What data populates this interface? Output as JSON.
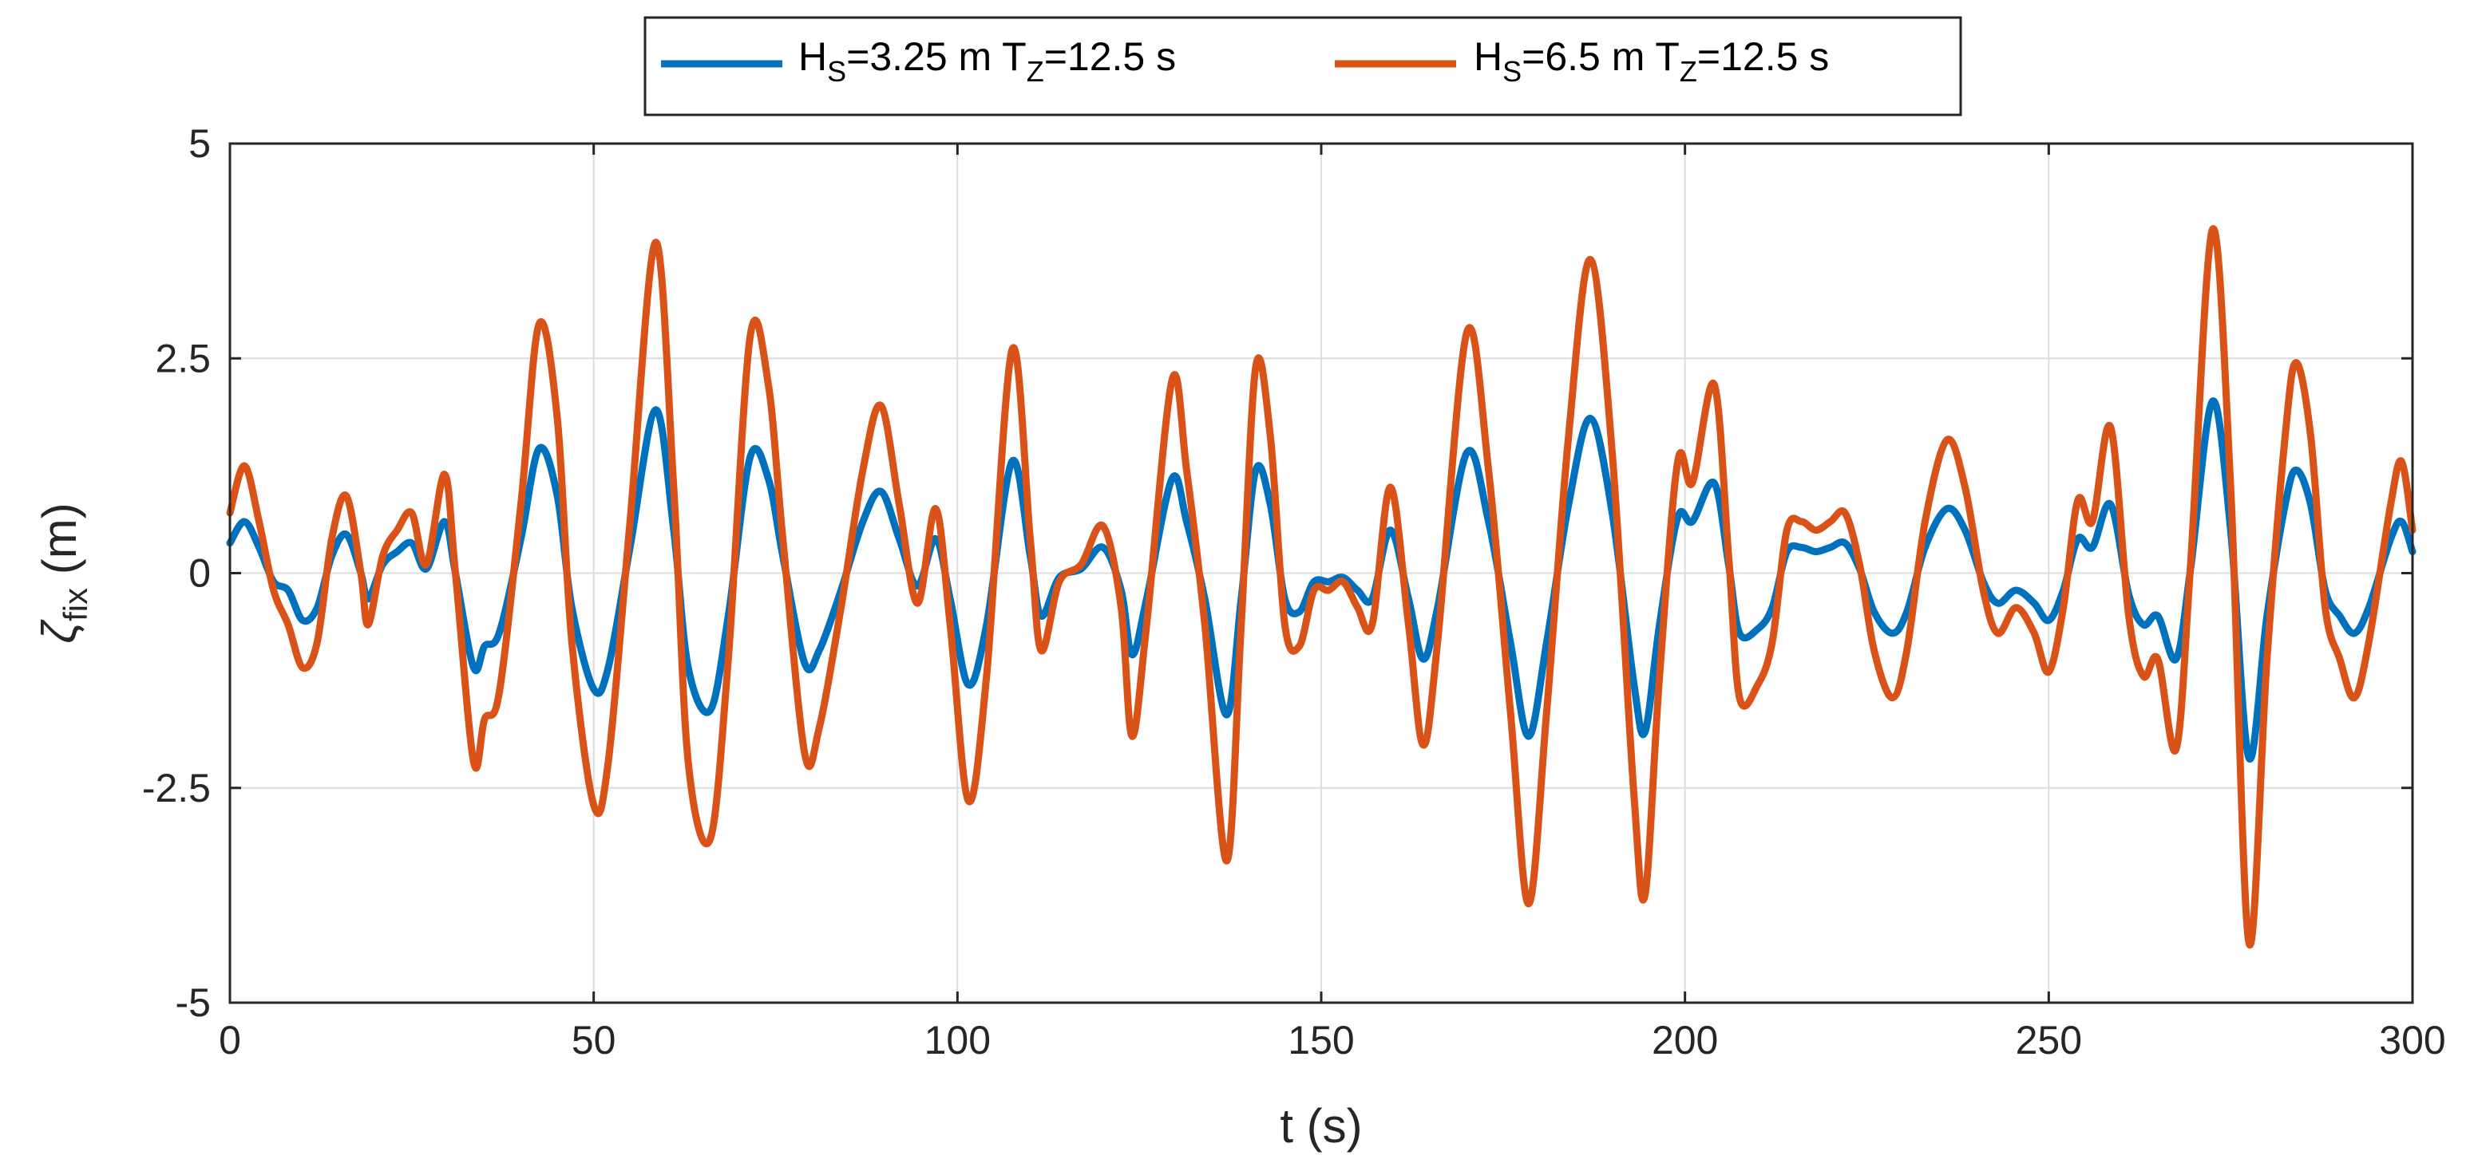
{
  "chart_data": {
    "type": "line",
    "xlabel": "t (s)",
    "ylabel": {
      "main": "ζ",
      "sub": "fix",
      "unit": " (m)"
    },
    "xlim": [
      0,
      300
    ],
    "ylim": [
      -5,
      5
    ],
    "xticks": [
      0,
      50,
      100,
      150,
      200,
      250,
      300
    ],
    "xtick_labels": [
      "0",
      "50",
      "100",
      "150",
      "200",
      "250",
      "300"
    ],
    "yticks": [
      -5,
      -2.5,
      0,
      2.5,
      5
    ],
    "ytick_labels": [
      "-5",
      "-2.5",
      "0",
      "2.5",
      "5"
    ],
    "grid": true,
    "legend_position": "top",
    "series": [
      {
        "name": "HS=3.25 m TZ=12.5 s",
        "label_parts": [
          {
            "t": "H",
            "sub": false
          },
          {
            "t": "S",
            "sub": true
          },
          {
            "t": "=3.25 m T",
            "sub": false
          },
          {
            "t": "Z",
            "sub": true
          },
          {
            "t": "=12.5 s",
            "sub": false
          }
        ],
        "color": "#0072BD",
        "points": [
          [
            0,
            0.35
          ],
          [
            2,
            0.6
          ],
          [
            4,
            0.3
          ],
          [
            6,
            -0.1
          ],
          [
            8,
            -0.2
          ],
          [
            10,
            -0.55
          ],
          [
            12,
            -0.4
          ],
          [
            14,
            0.2
          ],
          [
            16,
            0.45
          ],
          [
            18,
            0.0
          ],
          [
            19,
            -0.3
          ],
          [
            21,
            0.1
          ],
          [
            23,
            0.25
          ],
          [
            25,
            0.35
          ],
          [
            27,
            0.05
          ],
          [
            29.5,
            0.6
          ],
          [
            31,
            0.0
          ],
          [
            33.5,
            -1.1
          ],
          [
            35,
            -0.85
          ],
          [
            37,
            -0.7
          ],
          [
            40,
            0.4
          ],
          [
            42.5,
            1.45
          ],
          [
            45,
            0.9
          ],
          [
            47,
            -0.4
          ],
          [
            50,
            -1.35
          ],
          [
            52,
            -1.1
          ],
          [
            55,
            0.3
          ],
          [
            58.5,
            1.9
          ],
          [
            61,
            0.5
          ],
          [
            63,
            -1.1
          ],
          [
            66,
            -1.6
          ],
          [
            68.5,
            -0.5
          ],
          [
            71.5,
            1.35
          ],
          [
            74,
            1.1
          ],
          [
            76,
            0.2
          ],
          [
            79,
            -1.05
          ],
          [
            81,
            -0.9
          ],
          [
            84,
            -0.2
          ],
          [
            87,
            0.6
          ],
          [
            89.5,
            0.95
          ],
          [
            92,
            0.4
          ],
          [
            94.5,
            -0.15
          ],
          [
            97,
            0.4
          ],
          [
            99,
            -0.3
          ],
          [
            101.5,
            -1.3
          ],
          [
            104,
            -0.6
          ],
          [
            107.5,
            1.3
          ],
          [
            110,
            0.2
          ],
          [
            111.5,
            -0.5
          ],
          [
            114,
            -0.05
          ],
          [
            117,
            0.05
          ],
          [
            120,
            0.3
          ],
          [
            122.5,
            -0.2
          ],
          [
            124,
            -0.95
          ],
          [
            126,
            -0.3
          ],
          [
            129.5,
            1.1
          ],
          [
            131.5,
            0.6
          ],
          [
            134,
            -0.3
          ],
          [
            137,
            -1.65
          ],
          [
            139,
            -0.3
          ],
          [
            141,
            1.2
          ],
          [
            143,
            0.8
          ],
          [
            145,
            -0.3
          ],
          [
            147,
            -0.45
          ],
          [
            149,
            -0.1
          ],
          [
            151,
            -0.1
          ],
          [
            153,
            -0.05
          ],
          [
            155,
            -0.2
          ],
          [
            157,
            -0.3
          ],
          [
            159.5,
            0.5
          ],
          [
            162,
            -0.3
          ],
          [
            164,
            -1.0
          ],
          [
            166,
            -0.4
          ],
          [
            170,
            1.4
          ],
          [
            173,
            0.6
          ],
          [
            176,
            -0.8
          ],
          [
            178.5,
            -1.9
          ],
          [
            181,
            -0.8
          ],
          [
            184,
            0.8
          ],
          [
            187,
            1.8
          ],
          [
            190,
            0.7
          ],
          [
            193,
            -1.3
          ],
          [
            194.5,
            -1.85
          ],
          [
            196.5,
            -0.6
          ],
          [
            199,
            0.65
          ],
          [
            201,
            0.6
          ],
          [
            204,
            1.05
          ],
          [
            206,
            0.1
          ],
          [
            207.5,
            -0.7
          ],
          [
            210,
            -0.65
          ],
          [
            212,
            -0.4
          ],
          [
            214,
            0.25
          ],
          [
            216,
            0.3
          ],
          [
            218,
            0.25
          ],
          [
            220,
            0.3
          ],
          [
            222,
            0.35
          ],
          [
            224,
            0.05
          ],
          [
            226,
            -0.45
          ],
          [
            228.5,
            -0.7
          ],
          [
            230.5,
            -0.45
          ],
          [
            233,
            0.3
          ],
          [
            236,
            0.75
          ],
          [
            238.5,
            0.5
          ],
          [
            241,
            -0.1
          ],
          [
            243,
            -0.35
          ],
          [
            245.5,
            -0.2
          ],
          [
            248,
            -0.35
          ],
          [
            250,
            -0.55
          ],
          [
            252,
            -0.2
          ],
          [
            254,
            0.4
          ],
          [
            256,
            0.3
          ],
          [
            258.5,
            0.8
          ],
          [
            261,
            -0.25
          ],
          [
            263,
            -0.6
          ],
          [
            265,
            -0.5
          ],
          [
            267.5,
            -1.0
          ],
          [
            269.5,
            0.05
          ],
          [
            272.5,
            2.0
          ],
          [
            275,
            0.5
          ],
          [
            277.5,
            -2.15
          ],
          [
            280,
            -0.5
          ],
          [
            282.5,
            0.8
          ],
          [
            284,
            1.2
          ],
          [
            286,
            0.8
          ],
          [
            288,
            -0.2
          ],
          [
            290,
            -0.5
          ],
          [
            292,
            -0.7
          ],
          [
            294,
            -0.4
          ],
          [
            297,
            0.4
          ],
          [
            298.5,
            0.6
          ],
          [
            300,
            0.25
          ]
        ]
      },
      {
        "name": "HS=6.5 m TZ=12.5 s",
        "label_parts": [
          {
            "t": "H",
            "sub": false
          },
          {
            "t": "S",
            "sub": true
          },
          {
            "t": "=6.5 m T",
            "sub": false
          },
          {
            "t": "Z",
            "sub": true
          },
          {
            "t": "=12.5 s",
            "sub": false
          }
        ],
        "color": "#D95319",
        "points": [
          [
            0,
            0.7
          ],
          [
            2,
            1.25
          ],
          [
            4,
            0.6
          ],
          [
            6,
            -0.2
          ],
          [
            8,
            -0.6
          ],
          [
            10,
            -1.1
          ],
          [
            12,
            -0.8
          ],
          [
            14,
            0.4
          ],
          [
            16,
            0.9
          ],
          [
            18,
            0.0
          ],
          [
            19,
            -0.6
          ],
          [
            21,
            0.2
          ],
          [
            23,
            0.5
          ],
          [
            25,
            0.7
          ],
          [
            27,
            0.1
          ],
          [
            29.5,
            1.15
          ],
          [
            31,
            0.0
          ],
          [
            33.5,
            -2.2
          ],
          [
            35,
            -1.7
          ],
          [
            37,
            -1.4
          ],
          [
            40,
            0.8
          ],
          [
            42.5,
            2.9
          ],
          [
            45,
            1.8
          ],
          [
            47,
            -0.8
          ],
          [
            50,
            -2.7
          ],
          [
            52,
            -2.2
          ],
          [
            55,
            0.6
          ],
          [
            58.5,
            3.85
          ],
          [
            61,
            1.0
          ],
          [
            63,
            -2.2
          ],
          [
            66,
            -3.1
          ],
          [
            68.5,
            -1.0
          ],
          [
            71.5,
            2.75
          ],
          [
            74,
            2.2
          ],
          [
            76,
            0.4
          ],
          [
            79,
            -2.1
          ],
          [
            81,
            -1.8
          ],
          [
            84,
            -0.4
          ],
          [
            87,
            1.2
          ],
          [
            89.5,
            1.95
          ],
          [
            92,
            0.8
          ],
          [
            94.5,
            -0.35
          ],
          [
            97,
            0.75
          ],
          [
            99,
            -0.6
          ],
          [
            101.5,
            -2.65
          ],
          [
            104,
            -1.2
          ],
          [
            107.5,
            2.6
          ],
          [
            110,
            0.4
          ],
          [
            111.5,
            -0.9
          ],
          [
            114,
            -0.1
          ],
          [
            117,
            0.1
          ],
          [
            120,
            0.55
          ],
          [
            122.5,
            -0.4
          ],
          [
            124,
            -1.9
          ],
          [
            126,
            -0.6
          ],
          [
            129.5,
            2.25
          ],
          [
            131.5,
            1.2
          ],
          [
            134,
            -0.6
          ],
          [
            137,
            -3.35
          ],
          [
            139,
            -0.6
          ],
          [
            141,
            2.4
          ],
          [
            143,
            1.6
          ],
          [
            145,
            -0.6
          ],
          [
            147,
            -0.85
          ],
          [
            149,
            -0.2
          ],
          [
            151,
            -0.2
          ],
          [
            153,
            -0.1
          ],
          [
            155,
            -0.4
          ],
          [
            157,
            -0.6
          ],
          [
            159.5,
            1.0
          ],
          [
            162,
            -0.6
          ],
          [
            164,
            -2.0
          ],
          [
            166,
            -0.8
          ],
          [
            170,
            2.8
          ],
          [
            173,
            1.2
          ],
          [
            176,
            -1.6
          ],
          [
            178.5,
            -3.85
          ],
          [
            181,
            -1.6
          ],
          [
            184,
            1.6
          ],
          [
            187,
            3.65
          ],
          [
            190,
            1.4
          ],
          [
            193,
            -2.6
          ],
          [
            194.5,
            -3.75
          ],
          [
            196.5,
            -1.2
          ],
          [
            199,
            1.3
          ],
          [
            201,
            1.05
          ],
          [
            204,
            2.2
          ],
          [
            206,
            0.2
          ],
          [
            207.5,
            -1.45
          ],
          [
            210,
            -1.3
          ],
          [
            212,
            -0.8
          ],
          [
            214,
            0.5
          ],
          [
            216,
            0.6
          ],
          [
            218,
            0.5
          ],
          [
            220,
            0.6
          ],
          [
            222,
            0.7
          ],
          [
            224,
            0.1
          ],
          [
            226,
            -0.9
          ],
          [
            228.5,
            -1.45
          ],
          [
            230.5,
            -0.9
          ],
          [
            233,
            0.6
          ],
          [
            236,
            1.55
          ],
          [
            238.5,
            1.0
          ],
          [
            241,
            -0.2
          ],
          [
            243,
            -0.7
          ],
          [
            245.5,
            -0.4
          ],
          [
            248,
            -0.7
          ],
          [
            250,
            -1.15
          ],
          [
            252,
            -0.4
          ],
          [
            254,
            0.85
          ],
          [
            256,
            0.6
          ],
          [
            258.5,
            1.7
          ],
          [
            261,
            -0.5
          ],
          [
            263,
            -1.2
          ],
          [
            265,
            -1.0
          ],
          [
            267.5,
            -2.05
          ],
          [
            269.5,
            0.1
          ],
          [
            272.5,
            4.0
          ],
          [
            275,
            1.0
          ],
          [
            277.5,
            -4.3
          ],
          [
            280,
            -1.0
          ],
          [
            282.5,
            1.6
          ],
          [
            284,
            2.45
          ],
          [
            286,
            1.6
          ],
          [
            288,
            -0.4
          ],
          [
            290,
            -1.0
          ],
          [
            292,
            -1.45
          ],
          [
            294,
            -0.8
          ],
          [
            297,
            0.8
          ],
          [
            298.5,
            1.3
          ],
          [
            300,
            0.5
          ]
        ]
      }
    ]
  }
}
